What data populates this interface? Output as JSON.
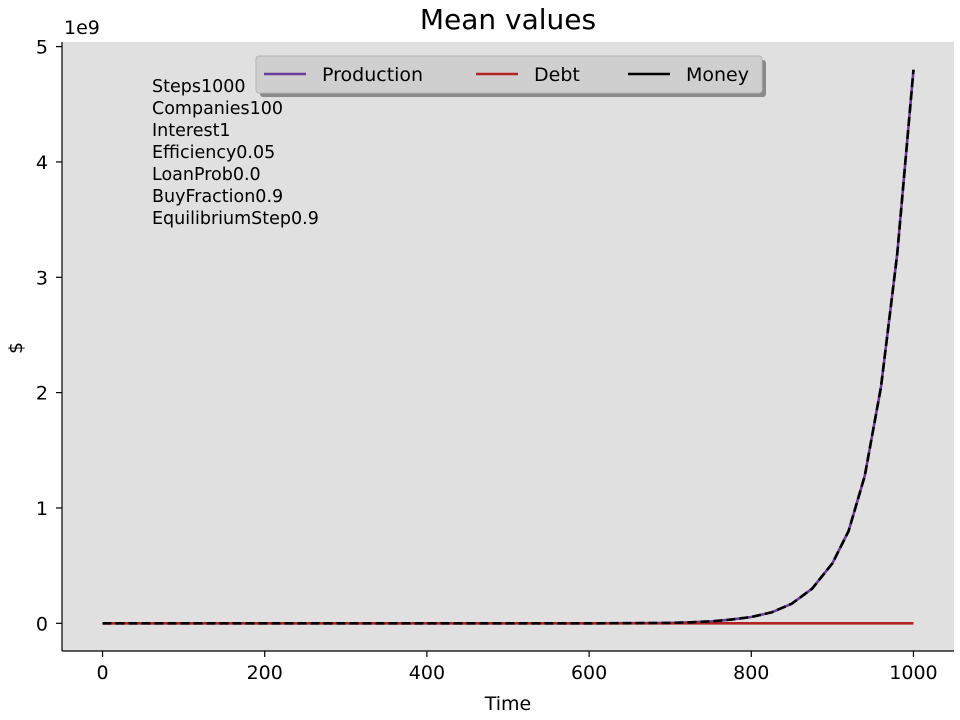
{
  "chart_data": {
    "type": "line",
    "title": "Mean values",
    "xlabel": "Time",
    "ylabel": "$",
    "y_multiplier_label": "1e9",
    "xlim": [
      -50,
      1050
    ],
    "ylim": [
      -0.24,
      5.04
    ],
    "xticks": [
      0,
      200,
      400,
      600,
      800,
      1000
    ],
    "yticks": [
      0,
      1,
      2,
      3,
      4,
      5
    ],
    "grid": false,
    "background_color": "#e0e0e0",
    "legend": {
      "placement": "top-center",
      "ncol": 3
    },
    "annotations": [
      "Steps1000",
      "Companies100",
      "Interest1",
      "Efficiency0.05",
      "LoanProb0.0",
      "BuyFraction0.9",
      "EquilibriumStep0.9"
    ],
    "x": [
      0,
      100,
      200,
      300,
      400,
      500,
      600,
      650,
      700,
      725,
      750,
      775,
      800,
      825,
      850,
      875,
      900,
      920,
      940,
      960,
      980,
      1000
    ],
    "series": [
      {
        "name": "Production",
        "color": "#6a3d9a",
        "style": "solid",
        "values": [
          0,
          2e-07,
          1e-06,
          5e-06,
          2e-05,
          0.0001,
          0.0005,
          0.0011,
          0.004,
          0.009,
          0.017,
          0.032,
          0.055,
          0.095,
          0.17,
          0.3,
          0.52,
          0.8,
          1.28,
          2.05,
          3.2,
          4.8
        ]
      },
      {
        "name": "Debt",
        "color": "#b22222",
        "style": "solid",
        "values": [
          0,
          0,
          0,
          0,
          0,
          0,
          0,
          0,
          0,
          0,
          0,
          0,
          0,
          0,
          0,
          0,
          0,
          0,
          0,
          0,
          0,
          0
        ]
      },
      {
        "name": "Money",
        "color": "#000000",
        "style": "dashed",
        "values": [
          0,
          2e-07,
          1e-06,
          5e-06,
          2e-05,
          0.0001,
          0.0005,
          0.0011,
          0.004,
          0.009,
          0.017,
          0.032,
          0.055,
          0.095,
          0.17,
          0.3,
          0.52,
          0.8,
          1.28,
          2.05,
          3.2,
          4.8
        ]
      }
    ]
  }
}
